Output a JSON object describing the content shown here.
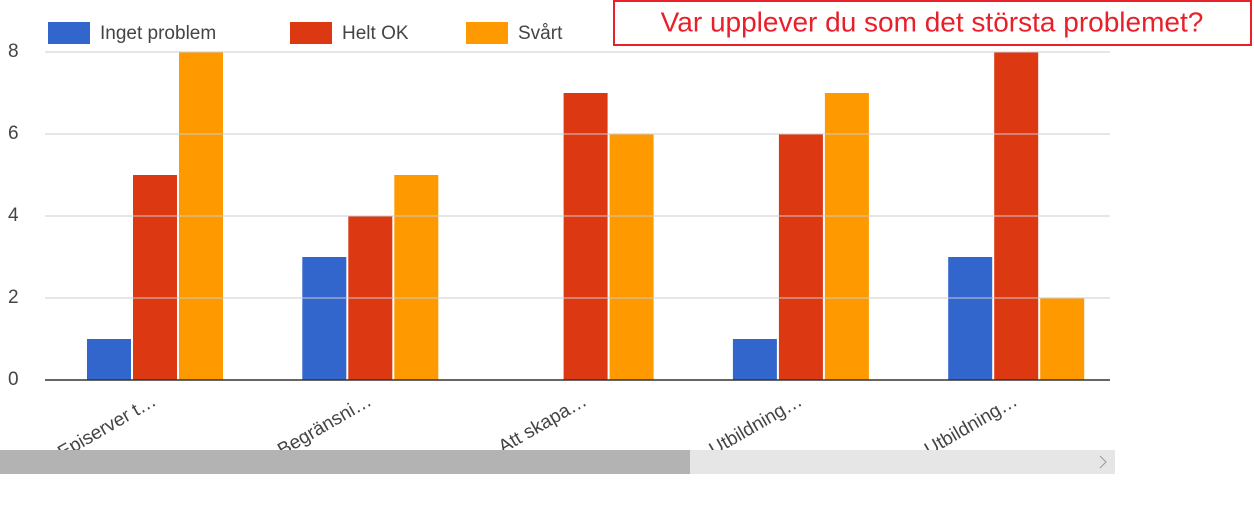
{
  "chart_data": {
    "type": "bar",
    "title": "Var upplever du som det största problemet?",
    "categories": [
      "Episerver t…",
      "Begränsni…",
      "Att skapa…",
      "Utbildning…",
      "Utbildning…"
    ],
    "series": [
      {
        "name": "Inget problem",
        "color": "#3366cc",
        "values": [
          1,
          3,
          0,
          1,
          3
        ]
      },
      {
        "name": "Helt OK",
        "color": "#dc3912",
        "values": [
          5,
          4,
          7,
          6,
          8
        ]
      },
      {
        "name": "Svårt",
        "color": "#ff9900",
        "values": [
          8,
          5,
          6,
          7,
          2
        ]
      }
    ],
    "ylim": [
      0,
      8
    ],
    "yticks": [
      0,
      2,
      4,
      6,
      8
    ],
    "grid": true,
    "legend": "top"
  }
}
